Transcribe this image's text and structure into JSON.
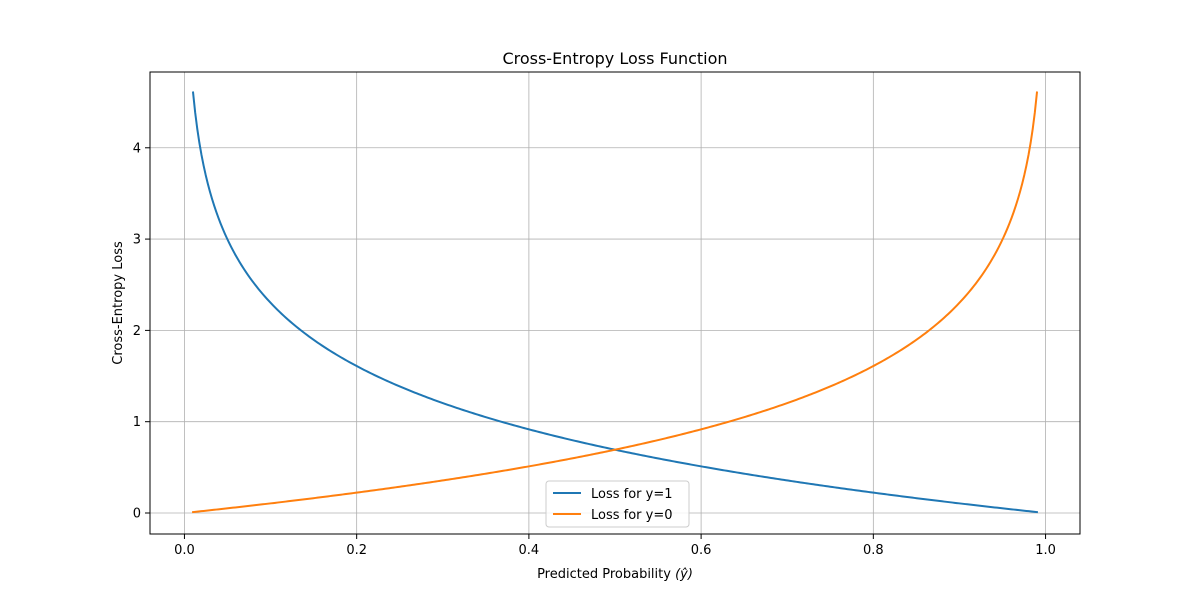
{
  "chart_data": {
    "type": "line",
    "title": "Cross-Entropy Loss Function",
    "xlabel": "Predicted Probability",
    "xlabel_symbol": "(ŷ)",
    "ylabel": "Cross-Entropy Loss",
    "xlim": [
      -0.04,
      1.04
    ],
    "ylim": [
      -0.23,
      4.83
    ],
    "x_ticks": [
      0.0,
      0.2,
      0.4,
      0.6,
      0.8,
      1.0
    ],
    "x_tick_labels": [
      "0.0",
      "0.2",
      "0.4",
      "0.6",
      "0.8",
      "1.0"
    ],
    "y_ticks": [
      0,
      1,
      2,
      3,
      4
    ],
    "y_tick_labels": [
      "0",
      "1",
      "2",
      "3",
      "4"
    ],
    "grid": true,
    "legend_position": "lower-center",
    "x_range": [
      0.01,
      0.99
    ],
    "series": [
      {
        "name": "Loss for y=1",
        "formula": "-ln(p)",
        "color": "#1f77b4",
        "sample_points": [
          {
            "x": 0.01,
            "y": 4.61
          },
          {
            "x": 0.05,
            "y": 3.0
          },
          {
            "x": 0.1,
            "y": 2.3
          },
          {
            "x": 0.2,
            "y": 1.61
          },
          {
            "x": 0.4,
            "y": 0.92
          },
          {
            "x": 0.5,
            "y": 0.69
          },
          {
            "x": 0.6,
            "y": 0.51
          },
          {
            "x": 0.8,
            "y": 0.22
          },
          {
            "x": 0.99,
            "y": 0.01
          }
        ]
      },
      {
        "name": "Loss for y=0",
        "formula": "-ln(1-p)",
        "color": "#ff7f0e",
        "sample_points": [
          {
            "x": 0.01,
            "y": 0.01
          },
          {
            "x": 0.2,
            "y": 0.22
          },
          {
            "x": 0.4,
            "y": 0.51
          },
          {
            "x": 0.5,
            "y": 0.69
          },
          {
            "x": 0.6,
            "y": 0.92
          },
          {
            "x": 0.8,
            "y": 1.61
          },
          {
            "x": 0.9,
            "y": 2.3
          },
          {
            "x": 0.95,
            "y": 3.0
          },
          {
            "x": 0.99,
            "y": 4.61
          }
        ]
      }
    ]
  }
}
